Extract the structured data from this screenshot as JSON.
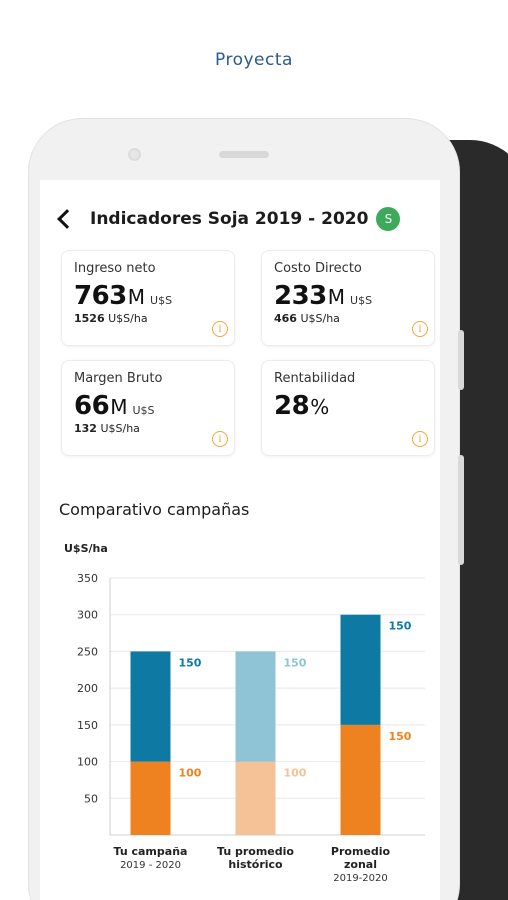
{
  "promo": {
    "title": "Proyecta"
  },
  "header": {
    "title": "Indicadores Soja 2019 - 2020",
    "badge": "S",
    "badge_color": "#3caa5a"
  },
  "cards": [
    {
      "label": "Ingreso neto",
      "value": "763",
      "magnitude": "M",
      "currency": "U$S",
      "sub_value": "1526",
      "sub_unit": "U$S/ha"
    },
    {
      "label": "Costo Directo",
      "value": "233",
      "magnitude": "M",
      "currency": "U$S",
      "sub_value": "466",
      "sub_unit": "U$S/ha"
    },
    {
      "label": "Margen Bruto",
      "value": "66",
      "magnitude": "M",
      "currency": "U$S",
      "sub_value": "132",
      "sub_unit": "U$S/ha"
    },
    {
      "label": "Rentabilidad",
      "value": "28",
      "magnitude": "%",
      "currency": "",
      "sub_value": "",
      "sub_unit": ""
    }
  ],
  "info_icon": "i",
  "comparison": {
    "title": "Comparativo campañas"
  },
  "chart_data": {
    "type": "bar",
    "stacked": true,
    "ylabel": "U$S/ha",
    "ylim": [
      0,
      350
    ],
    "yticks": [
      50,
      100,
      150,
      200,
      250,
      300,
      350
    ],
    "grid": true,
    "categories": [
      "Tu campaña",
      "Tu promedio histórico",
      "Promedio zonal"
    ],
    "category_lines": [
      [
        "Tu campaña"
      ],
      [
        "Tu promedio",
        "histórico"
      ],
      [
        "Promedio",
        "zonal"
      ]
    ],
    "category_subtitles": [
      "2019 - 2020",
      "",
      "2019-2020"
    ],
    "series": [
      {
        "values": [
          100,
          100,
          150
        ],
        "colors": [
          "#ef8220",
          "#f5c197",
          "#ef8220"
        ]
      },
      {
        "values": [
          150,
          150,
          150
        ],
        "colors": [
          "#0e7aa3",
          "#8ec4d6",
          "#0e7aa3"
        ]
      }
    ]
  }
}
